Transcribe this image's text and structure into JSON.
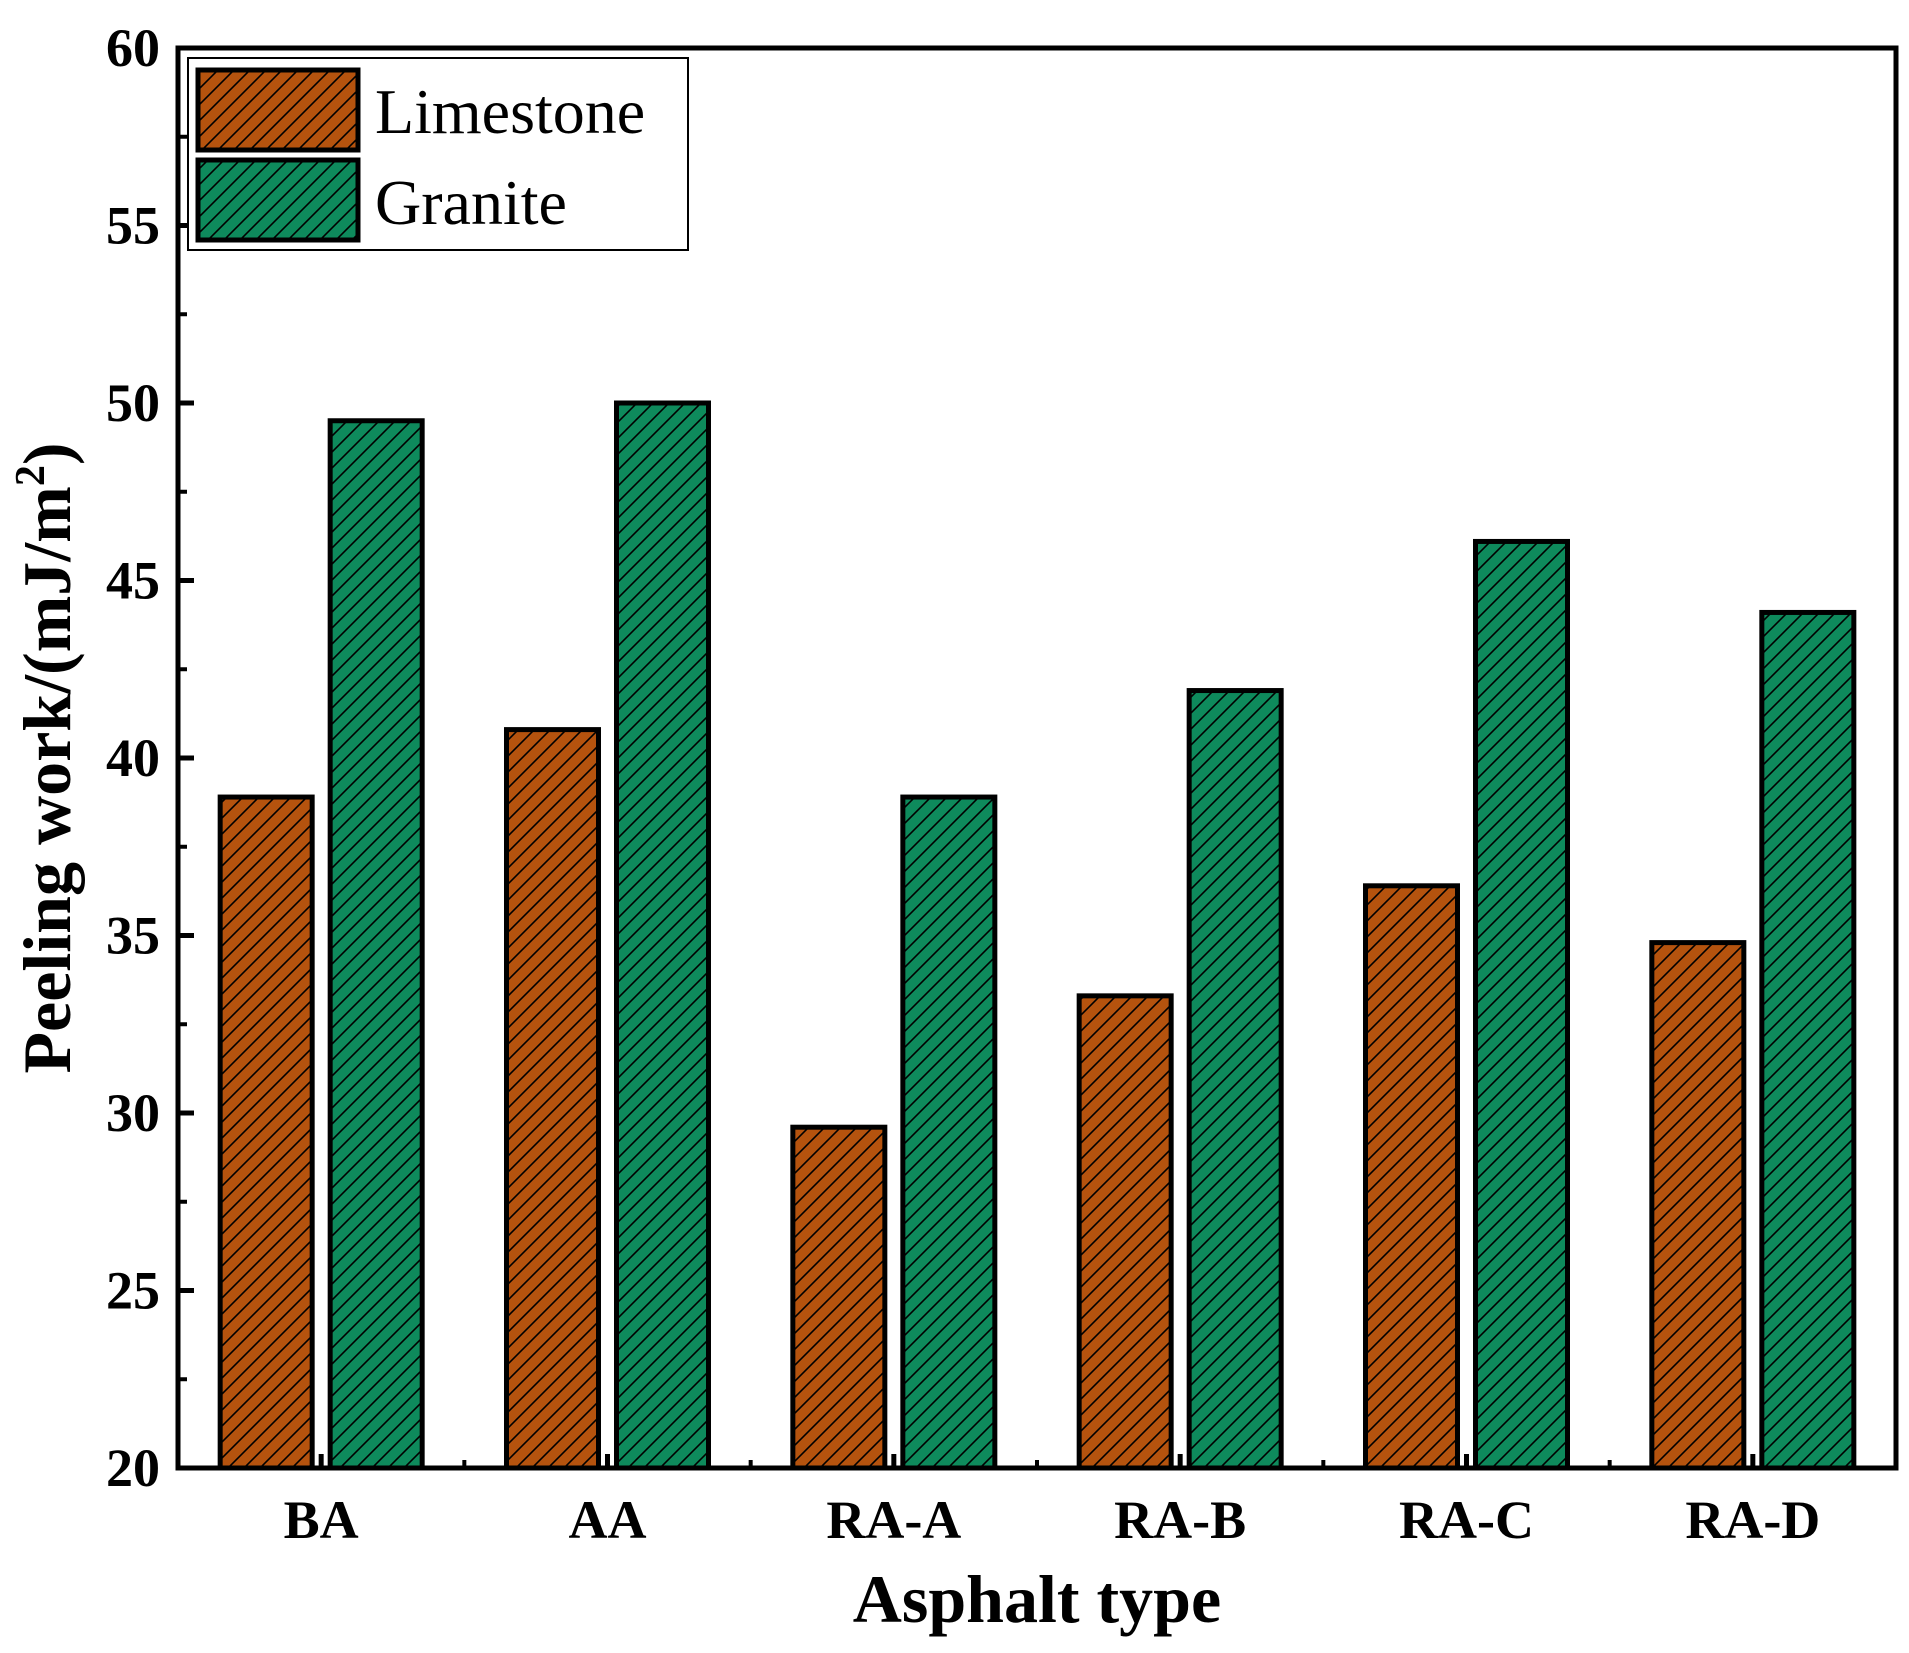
{
  "chart_data": {
    "type": "bar",
    "title": "",
    "xlabel": "Asphalt type",
    "ylabel_main": "Peeling work/(mJ/m",
    "ylabel_sup": "2",
    "ylabel_close": ")",
    "categories": [
      "BA",
      "AA",
      "RA-A",
      "RA-B",
      "RA-C",
      "RA-D"
    ],
    "series": [
      {
        "name": "Limestone",
        "color": "#B5530E",
        "values": [
          38.9,
          40.8,
          29.6,
          33.3,
          36.4,
          34.8
        ]
      },
      {
        "name": "Granite",
        "color": "#0E8A5C",
        "values": [
          49.5,
          50.0,
          38.9,
          41.9,
          46.1,
          44.1
        ]
      }
    ],
    "ylim": [
      20,
      60
    ],
    "yticks": [
      "20",
      "25",
      "30",
      "35",
      "40",
      "45",
      "50",
      "55",
      "60"
    ],
    "legend_position": "top-left",
    "hatch": "diagonal",
    "grid": false
  }
}
